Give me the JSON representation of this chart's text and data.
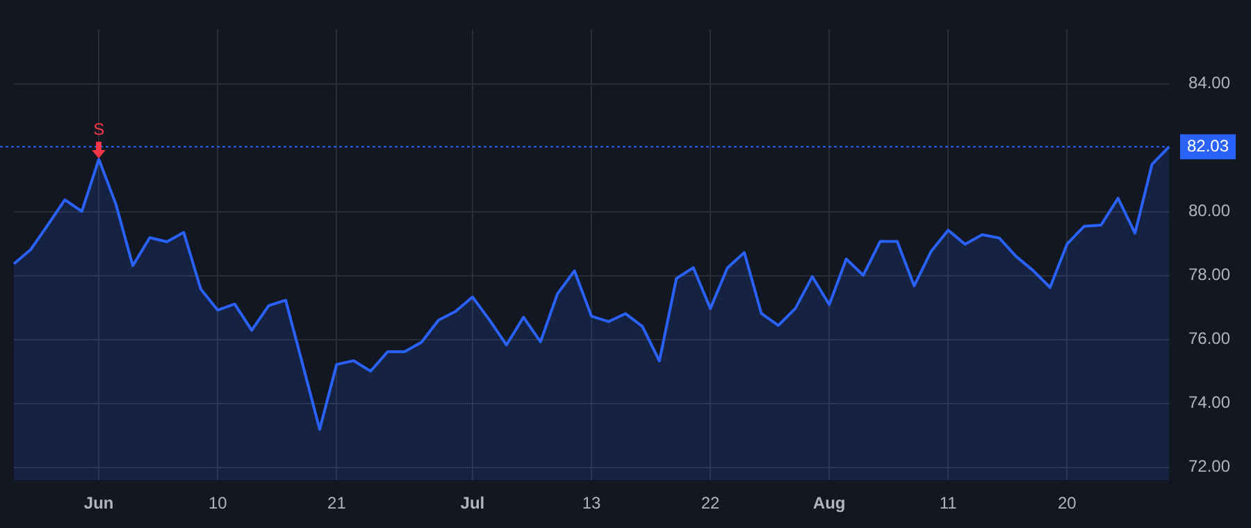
{
  "chart_data": {
    "type": "area",
    "categories": [
      null,
      null,
      null,
      null,
      null,
      "Jun",
      null,
      null,
      null,
      null,
      null,
      null,
      "10",
      null,
      null,
      null,
      null,
      null,
      null,
      "21",
      null,
      null,
      null,
      null,
      null,
      null,
      null,
      "Jul",
      null,
      null,
      null,
      null,
      null,
      null,
      "13",
      null,
      null,
      null,
      null,
      null,
      null,
      "22",
      null,
      null,
      null,
      null,
      null,
      null,
      "Aug",
      null,
      null,
      null,
      null,
      null,
      null,
      "11",
      null,
      null,
      null,
      null,
      null,
      null,
      "20",
      null,
      null,
      null,
      null,
      null,
      null
    ],
    "series": [
      {
        "color": "#2962ff",
        "values": [
          78.37,
          78.82,
          79.59,
          80.37,
          80.01,
          81.64,
          80.24,
          78.31,
          79.19,
          79.06,
          79.35,
          77.58,
          76.92,
          77.11,
          76.29,
          77.06,
          77.23,
          75.22,
          73.19,
          75.22,
          75.34,
          75.01,
          75.62,
          75.62,
          75.92,
          76.61,
          76.88,
          77.33,
          76.61,
          75.83,
          76.7,
          75.93,
          77.43,
          78.15,
          76.73,
          76.56,
          76.81,
          76.41,
          75.33,
          77.91,
          78.25,
          76.97,
          78.24,
          78.72,
          76.82,
          76.44,
          76.97,
          77.97,
          77.09,
          78.52,
          78.01,
          79.07,
          79.07,
          77.68,
          78.76,
          79.42,
          78.98,
          79.28,
          79.18,
          78.6,
          78.16,
          77.63,
          78.99,
          79.54,
          79.58,
          80.42,
          79.33,
          81.48,
          82.03
        ]
      }
    ],
    "ylim": [
      71.6,
      85.7
    ],
    "yticks": [
      {
        "value": 72,
        "label": "72.00"
      },
      {
        "value": 74,
        "label": "74.00"
      },
      {
        "value": 76,
        "label": "76.00"
      },
      {
        "value": 78,
        "label": "78.00"
      },
      {
        "value": 80,
        "label": "80.00"
      },
      {
        "value": 84,
        "label": "84.00"
      }
    ],
    "ref_lines": [
      {
        "axis": "y",
        "value": 82.03,
        "label": "82.03",
        "color": "#2962ff",
        "line_style": "dotted"
      }
    ],
    "annotations": [
      {
        "text": "S",
        "x": "Jun",
        "y": 81.64
      }
    ],
    "grid": true,
    "legend": false,
    "marker": "none",
    "line_style": "solid"
  }
}
